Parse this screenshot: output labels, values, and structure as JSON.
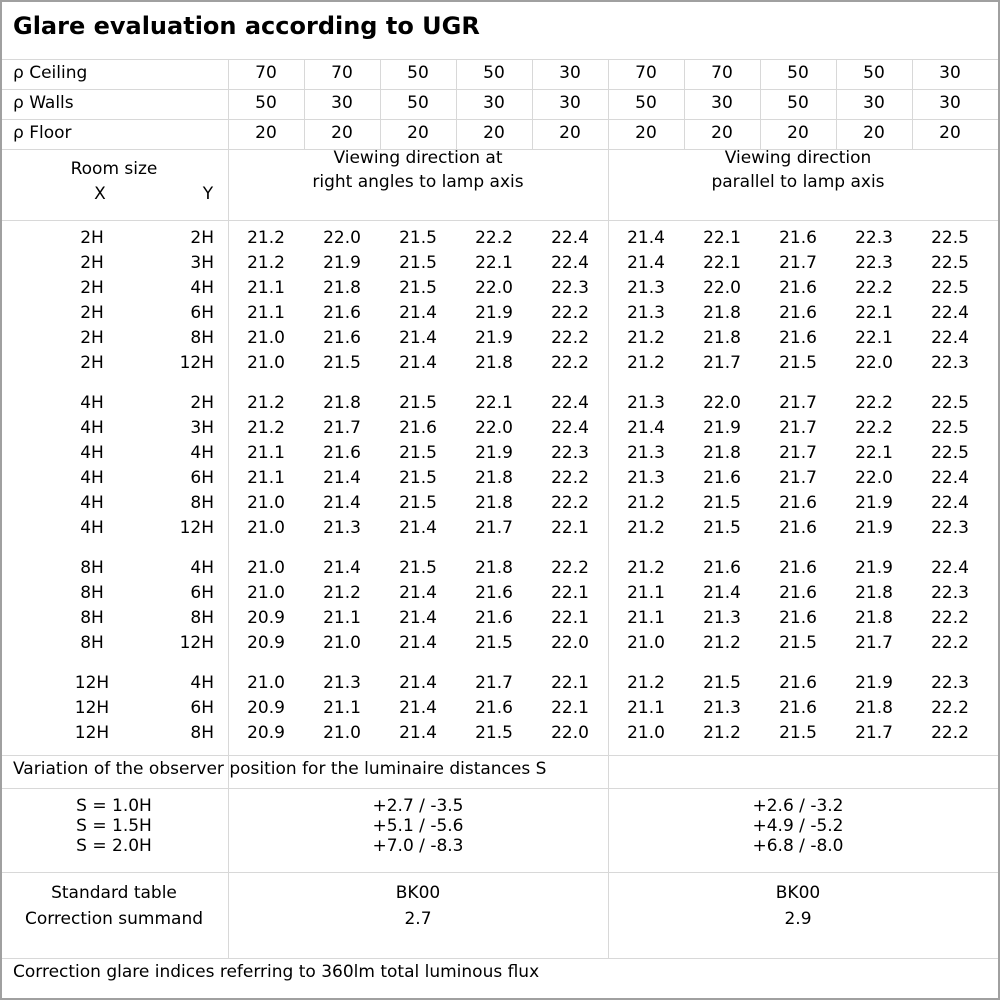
{
  "title": "Glare evaluation according to UGR",
  "reflectances": [
    {
      "label": "ρ Ceiling",
      "values": [
        "70",
        "70",
        "50",
        "50",
        "30",
        "70",
        "70",
        "50",
        "50",
        "30"
      ]
    },
    {
      "label": "ρ Walls",
      "values": [
        "50",
        "30",
        "50",
        "30",
        "30",
        "50",
        "30",
        "50",
        "30",
        "30"
      ]
    },
    {
      "label": "ρ Floor",
      "values": [
        "20",
        "20",
        "20",
        "20",
        "20",
        "20",
        "20",
        "20",
        "20",
        "20"
      ]
    }
  ],
  "header": {
    "room_size": "Room size",
    "x": "X",
    "y": "Y",
    "dir_right_1": "Viewing direction at",
    "dir_right_2": "right angles to lamp axis",
    "dir_parallel_1": "Viewing direction",
    "dir_parallel_2": "parallel to lamp axis"
  },
  "groups": [
    [
      [
        "2H",
        "2H",
        [
          "21.2",
          "22.0",
          "21.5",
          "22.2",
          "22.4",
          "21.4",
          "22.1",
          "21.6",
          "22.3",
          "22.5"
        ]
      ],
      [
        "2H",
        "3H",
        [
          "21.2",
          "21.9",
          "21.5",
          "22.1",
          "22.4",
          "21.4",
          "22.1",
          "21.7",
          "22.3",
          "22.5"
        ]
      ],
      [
        "2H",
        "4H",
        [
          "21.1",
          "21.8",
          "21.5",
          "22.0",
          "22.3",
          "21.3",
          "22.0",
          "21.6",
          "22.2",
          "22.5"
        ]
      ],
      [
        "2H",
        "6H",
        [
          "21.1",
          "21.6",
          "21.4",
          "21.9",
          "22.2",
          "21.3",
          "21.8",
          "21.6",
          "22.1",
          "22.4"
        ]
      ],
      [
        "2H",
        "8H",
        [
          "21.0",
          "21.6",
          "21.4",
          "21.9",
          "22.2",
          "21.2",
          "21.8",
          "21.6",
          "22.1",
          "22.4"
        ]
      ],
      [
        "2H",
        "12H",
        [
          "21.0",
          "21.5",
          "21.4",
          "21.8",
          "22.2",
          "21.2",
          "21.7",
          "21.5",
          "22.0",
          "22.3"
        ]
      ]
    ],
    [
      [
        "4H",
        "2H",
        [
          "21.2",
          "21.8",
          "21.5",
          "22.1",
          "22.4",
          "21.3",
          "22.0",
          "21.7",
          "22.2",
          "22.5"
        ]
      ],
      [
        "4H",
        "3H",
        [
          "21.2",
          "21.7",
          "21.6",
          "22.0",
          "22.4",
          "21.4",
          "21.9",
          "21.7",
          "22.2",
          "22.5"
        ]
      ],
      [
        "4H",
        "4H",
        [
          "21.1",
          "21.6",
          "21.5",
          "21.9",
          "22.3",
          "21.3",
          "21.8",
          "21.7",
          "22.1",
          "22.5"
        ]
      ],
      [
        "4H",
        "6H",
        [
          "21.1",
          "21.4",
          "21.5",
          "21.8",
          "22.2",
          "21.3",
          "21.6",
          "21.7",
          "22.0",
          "22.4"
        ]
      ],
      [
        "4H",
        "8H",
        [
          "21.0",
          "21.4",
          "21.5",
          "21.8",
          "22.2",
          "21.2",
          "21.5",
          "21.6",
          "21.9",
          "22.4"
        ]
      ],
      [
        "4H",
        "12H",
        [
          "21.0",
          "21.3",
          "21.4",
          "21.7",
          "22.1",
          "21.2",
          "21.5",
          "21.6",
          "21.9",
          "22.3"
        ]
      ]
    ],
    [
      [
        "8H",
        "4H",
        [
          "21.0",
          "21.4",
          "21.5",
          "21.8",
          "22.2",
          "21.2",
          "21.6",
          "21.6",
          "21.9",
          "22.4"
        ]
      ],
      [
        "8H",
        "6H",
        [
          "21.0",
          "21.2",
          "21.4",
          "21.6",
          "22.1",
          "21.1",
          "21.4",
          "21.6",
          "21.8",
          "22.3"
        ]
      ],
      [
        "8H",
        "8H",
        [
          "20.9",
          "21.1",
          "21.4",
          "21.6",
          "22.1",
          "21.1",
          "21.3",
          "21.6",
          "21.8",
          "22.2"
        ]
      ],
      [
        "8H",
        "12H",
        [
          "20.9",
          "21.0",
          "21.4",
          "21.5",
          "22.0",
          "21.0",
          "21.2",
          "21.5",
          "21.7",
          "22.2"
        ]
      ]
    ],
    [
      [
        "12H",
        "4H",
        [
          "21.0",
          "21.3",
          "21.4",
          "21.7",
          "22.1",
          "21.2",
          "21.5",
          "21.6",
          "21.9",
          "22.3"
        ]
      ],
      [
        "12H",
        "6H",
        [
          "20.9",
          "21.1",
          "21.4",
          "21.6",
          "22.1",
          "21.1",
          "21.3",
          "21.6",
          "21.8",
          "22.2"
        ]
      ],
      [
        "12H",
        "8H",
        [
          "20.9",
          "21.0",
          "21.4",
          "21.5",
          "22.0",
          "21.0",
          "21.2",
          "21.5",
          "21.7",
          "22.2"
        ]
      ]
    ]
  ],
  "variation": {
    "label": "Variation of the observer position for the luminaire distances S",
    "rows": [
      [
        "S = 1.0H",
        "+2.7 / -3.5",
        "+2.6 / -3.2"
      ],
      [
        "S = 1.5H",
        "+5.1 / -5.6",
        "+4.9 / -5.2"
      ],
      [
        "S = 2.0H",
        "+7.0 / -8.3",
        "+6.8 / -8.0"
      ]
    ]
  },
  "standard": {
    "label1": "Standard table",
    "label2": "Correction summand",
    "right": "BK00",
    "right_val": "2.7",
    "parallel": "BK00",
    "parallel_val": "2.9"
  },
  "footnote": "Correction glare indices referring to 360lm total luminous flux"
}
